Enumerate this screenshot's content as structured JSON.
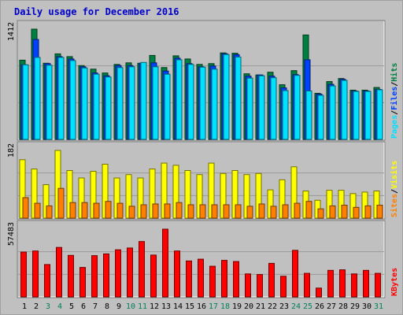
{
  "chart_data": {
    "type": "bar",
    "title": "Daily usage for December 2016",
    "days": [
      "1",
      "2",
      "3",
      "4",
      "5",
      "6",
      "7",
      "8",
      "9",
      "10",
      "11",
      "12",
      "13",
      "14",
      "15",
      "16",
      "17",
      "18",
      "19",
      "20",
      "21",
      "22",
      "23",
      "24",
      "25",
      "26",
      "27",
      "28",
      "29",
      "30",
      "31"
    ],
    "weekend_days": [
      "3",
      "4",
      "10",
      "11",
      "17",
      "18",
      "24",
      "25",
      "31"
    ],
    "colors": {
      "background": "#c0c0c0",
      "frame": "#ffffff",
      "title": "#0000cc",
      "hits": "#008040",
      "files": "#0040ff",
      "pages": "#00e0ff",
      "visits": "#ffff00",
      "sites": "#ff8000",
      "kbytes": "#ff0000",
      "weekday_label": "#000000",
      "weekend_label": "#00805a"
    },
    "panels": [
      {
        "id": "requests",
        "max_label": "1412",
        "ymax": 1412,
        "legend": [
          {
            "label": "Pages",
            "color": "#00e0ff"
          },
          {
            "label": "Files",
            "color": "#0040ff"
          },
          {
            "label": "Hits",
            "color": "#008040"
          }
        ],
        "series": [
          {
            "name": "Hits",
            "values": [
              1015,
              1412,
              975,
              1095,
              1060,
              945,
              900,
              850,
              960,
              980,
              975,
              1075,
              920,
              1070,
              1030,
              960,
              970,
              1107,
              1103,
              840,
              825,
              860,
              700,
              880,
              1337,
              590,
              740,
              780,
              630,
              630,
              665
            ]
          },
          {
            "name": "Files",
            "values": [
              955,
              1280,
              970,
              1060,
              1030,
              930,
              850,
              815,
              945,
              945,
              975,
              980,
              875,
              1040,
              970,
              930,
              940,
              1097,
              1085,
              810,
              825,
              810,
              660,
              830,
              1020,
              580,
              705,
              770,
              620,
              620,
              640
            ]
          },
          {
            "name": "Pages",
            "values": [
              955,
              1050,
              950,
              1050,
              1010,
              915,
              835,
              800,
              920,
              930,
              985,
              930,
              835,
              1020,
              960,
              925,
              900,
              1087,
              1055,
              785,
              815,
              790,
              625,
              820,
              620,
              565,
              685,
              755,
              615,
              615,
              635
            ]
          }
        ]
      },
      {
        "id": "visitors",
        "max_label": "182",
        "ymax": 182,
        "legend": [
          {
            "label": "Sites",
            "color": "#ff8000"
          },
          {
            "label": "Visits",
            "color": "#ffff00"
          }
        ],
        "series": [
          {
            "name": "Visits",
            "values": [
              157,
              132,
              90,
              182,
              128,
              108,
              126,
              145,
              108,
              117,
              108,
              132,
              148,
              142,
              128,
              117,
              148,
              120,
              128,
              117,
              120,
              76,
              103,
              138,
              73,
              48,
              75,
              75,
              66,
              70,
              73
            ]
          },
          {
            "name": "Sites",
            "values": [
              55,
              40,
              33,
              80,
              42,
              42,
              40,
              45,
              40,
              32,
              36,
              38,
              38,
              42,
              36,
              36,
              36,
              36,
              36,
              32,
              38,
              32,
              36,
              40,
              45,
              25,
              33,
              35,
              29,
              33,
              35
            ]
          }
        ]
      },
      {
        "id": "volume",
        "max_label": "57483",
        "ymax": 57483,
        "legend": [
          {
            "label": "KBytes",
            "color": "#ff0000"
          }
        ],
        "series": [
          {
            "name": "KBytes",
            "values": [
              38000,
              39000,
              27500,
              42000,
              35200,
              25000,
              35000,
              36500,
              40000,
              41500,
              47000,
              35500,
              57483,
              39000,
              30500,
              32000,
              26000,
              31000,
              30000,
              19500,
              19000,
              28500,
              17500,
              39500,
              20000,
              7500,
              22500,
              23000,
              19500,
              22500,
              20000
            ]
          }
        ]
      }
    ]
  }
}
